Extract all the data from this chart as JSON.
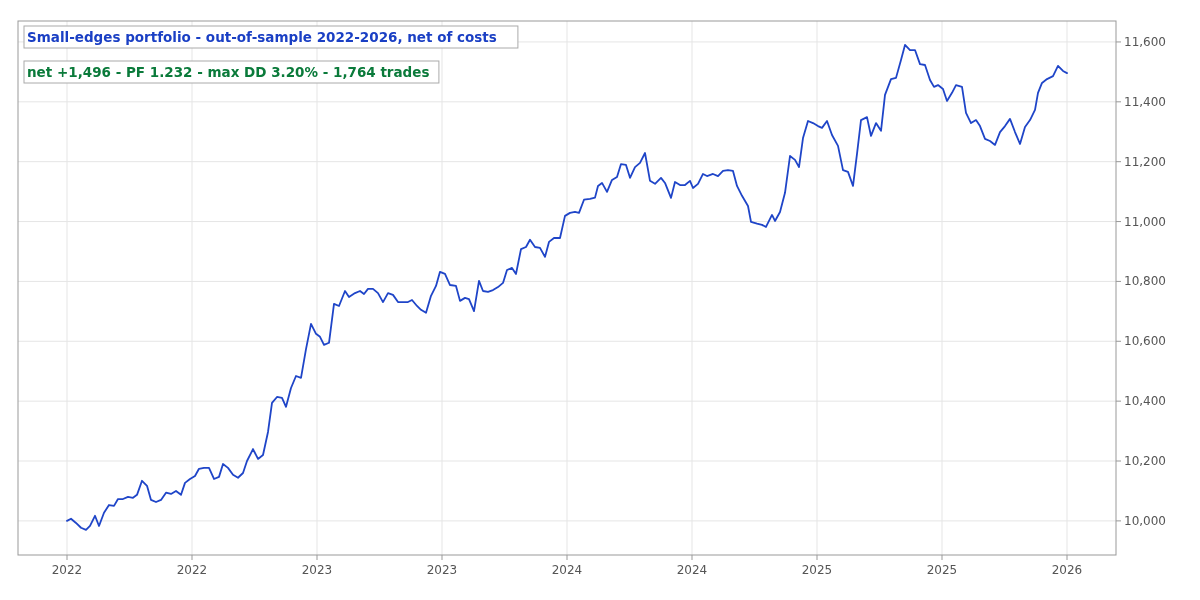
{
  "chart_data": {
    "type": "line",
    "title": "Small-edges portfolio - out-of-sample 2022-2026, net of costs",
    "subtitle": "net +1,496 - PF 1.232 - max DD 3.20% - 1,764 trades",
    "xlim": [
      2021.804,
      2026.196
    ],
    "xticks": [
      {
        "value": 2022,
        "label": "2022"
      },
      {
        "value": 2022.5,
        "label": "2022"
      },
      {
        "value": 2023,
        "label": "2023"
      },
      {
        "value": 2023.5,
        "label": "2023"
      },
      {
        "value": 2024,
        "label": "2024"
      },
      {
        "value": 2024.5,
        "label": "2024"
      },
      {
        "value": 2025,
        "label": "2025"
      },
      {
        "value": 2025.5,
        "label": "2025"
      },
      {
        "value": 2026,
        "label": "2026"
      }
    ],
    "ylim": [
      9886,
      11670
    ],
    "yticks": [
      {
        "value": 10000,
        "label": "10,000"
      },
      {
        "value": 10200,
        "label": "10,200"
      },
      {
        "value": 10400,
        "label": "10,400"
      },
      {
        "value": 10600,
        "label": "10,600"
      },
      {
        "value": 10800,
        "label": "10,800"
      },
      {
        "value": 11000,
        "label": "11,000"
      },
      {
        "value": 11200,
        "label": "11,200"
      },
      {
        "value": 11400,
        "label": "11,400"
      },
      {
        "value": 11600,
        "label": "11,600"
      }
    ],
    "grid": true,
    "marker": "none",
    "line_style": "solid",
    "series": [
      {
        "color": "#1f45c8",
        "x": [
          2022.0,
          2022.016,
          2022.036,
          2022.056,
          2022.076,
          2022.092,
          2022.112,
          2022.128,
          2022.148,
          2022.168,
          2022.188,
          2022.204,
          2022.224,
          2022.244,
          2022.264,
          2022.28,
          2022.3,
          2022.32,
          2022.336,
          2022.356,
          2022.376,
          2022.396,
          2022.416,
          2022.436,
          2022.456,
          2022.472,
          2022.492,
          2022.512,
          2022.528,
          2022.548,
          2022.568,
          2022.588,
          2022.608,
          2022.624,
          2022.644,
          2022.664,
          2022.684,
          2022.704,
          2022.72,
          2022.744,
          2022.764,
          2022.784,
          2022.804,
          2022.82,
          2022.84,
          2022.86,
          2022.876,
          2022.896,
          2022.916,
          2022.936,
          2022.956,
          2022.976,
          2022.996,
          2023.012,
          2023.028,
          2023.048,
          2023.068,
          2023.088,
          2023.112,
          2023.128,
          2023.152,
          2023.172,
          2023.188,
          2023.204,
          2023.224,
          2023.244,
          2023.264,
          2023.284,
          2023.304,
          2023.324,
          2023.344,
          2023.364,
          2023.38,
          2023.4,
          2023.416,
          2023.436,
          2023.456,
          2023.476,
          2023.492,
          2023.512,
          2023.532,
          2023.556,
          2023.572,
          2023.592,
          2023.608,
          2023.628,
          2023.648,
          2023.664,
          2023.684,
          2023.704,
          2023.724,
          2023.744,
          2023.76,
          2023.78,
          2023.796,
          2023.816,
          2023.836,
          2023.852,
          2023.872,
          2023.892,
          2023.912,
          2023.928,
          2023.948,
          2023.972,
          2023.992,
          2024.012,
          2024.032,
          2024.048,
          2024.068,
          2024.092,
          2024.112,
          2024.124,
          2024.14,
          2024.16,
          2024.18,
          2024.2,
          2024.216,
          2024.236,
          2024.252,
          2024.272,
          2024.292,
          2024.312,
          2024.332,
          2024.352,
          2024.376,
          2024.392,
          2024.416,
          2024.432,
          2024.452,
          2024.472,
          2024.492,
          2024.504,
          2024.524,
          2024.544,
          2024.56,
          2024.584,
          2024.604,
          2024.624,
          2024.644,
          2024.664,
          2024.68,
          2024.7,
          2024.724,
          2024.736,
          2024.76,
          2024.78,
          2024.796,
          2024.82,
          2024.832,
          2024.852,
          2024.872,
          2024.892,
          2024.912,
          2024.928,
          2024.944,
          2024.964,
          2024.984,
          2025.004,
          2025.02,
          2025.04,
          2025.06,
          2025.084,
          2025.104,
          2025.124,
          2025.144,
          2025.16,
          2025.176,
          2025.2,
          2025.216,
          2025.236,
          2025.256,
          2025.272,
          2025.296,
          2025.316,
          2025.336,
          2025.352,
          2025.372,
          2025.392,
          2025.412,
          2025.432,
          2025.452,
          2025.468,
          2025.484,
          2025.504,
          2025.52,
          2025.54,
          2025.556,
          2025.58,
          2025.596,
          2025.616,
          2025.636,
          2025.652,
          2025.672,
          2025.692,
          2025.712,
          2025.732,
          2025.752,
          2025.772,
          2025.792,
          2025.812,
          2025.832,
          2025.852,
          2025.872,
          2025.884,
          2025.9,
          2025.92,
          2025.944,
          2025.964,
          2025.984,
          2026.0
        ],
        "values": [
          10000,
          10007,
          9993,
          9977,
          9970,
          9983,
          10017,
          9983,
          10027,
          10053,
          10050,
          10073,
          10073,
          10080,
          10077,
          10087,
          10134,
          10117,
          10070,
          10063,
          10070,
          10094,
          10090,
          10100,
          10087,
          10127,
          10140,
          10150,
          10174,
          10177,
          10177,
          10140,
          10147,
          10190,
          10177,
          10154,
          10144,
          10160,
          10200,
          10240,
          10207,
          10220,
          10297,
          10394,
          10414,
          10411,
          10381,
          10444,
          10484,
          10478,
          10574,
          10658,
          10625,
          10615,
          10588,
          10595,
          10725,
          10718,
          10768,
          10748,
          10761,
          10768,
          10758,
          10775,
          10775,
          10761,
          10731,
          10761,
          10755,
          10731,
          10731,
          10731,
          10738,
          10718,
          10705,
          10695,
          10752,
          10785,
          10832,
          10825,
          10788,
          10785,
          10735,
          10745,
          10741,
          10701,
          10802,
          10768,
          10765,
          10771,
          10781,
          10795,
          10838,
          10845,
          10825,
          10908,
          10915,
          10939,
          10915,
          10912,
          10882,
          10932,
          10945,
          10945,
          11019,
          11029,
          11032,
          11029,
          11073,
          11076,
          11080,
          11119,
          11129,
          11099,
          11139,
          11149,
          11192,
          11189,
          11146,
          11182,
          11196,
          11229,
          11136,
          11126,
          11146,
          11129,
          11079,
          11132,
          11122,
          11122,
          11136,
          11112,
          11126,
          11159,
          11152,
          11159,
          11152,
          11169,
          11172,
          11169,
          11119,
          11086,
          11052,
          10999,
          10993,
          10989,
          10982,
          11022,
          11002,
          11032,
          11096,
          11219,
          11206,
          11182,
          11279,
          11336,
          11329,
          11319,
          11313,
          11336,
          11289,
          11253,
          11172,
          11166,
          11119,
          11226,
          11339,
          11349,
          11286,
          11329,
          11303,
          11423,
          11476,
          11480,
          11540,
          11590,
          11573,
          11573,
          11526,
          11523,
          11473,
          11450,
          11456,
          11443,
          11403,
          11430,
          11456,
          11450,
          11363,
          11329,
          11339,
          11319,
          11276,
          11269,
          11256,
          11299,
          11319,
          11343,
          11299,
          11259,
          11316,
          11339,
          11373,
          11430,
          11463,
          11476,
          11486,
          11520,
          11503,
          11496
        ]
      }
    ]
  }
}
